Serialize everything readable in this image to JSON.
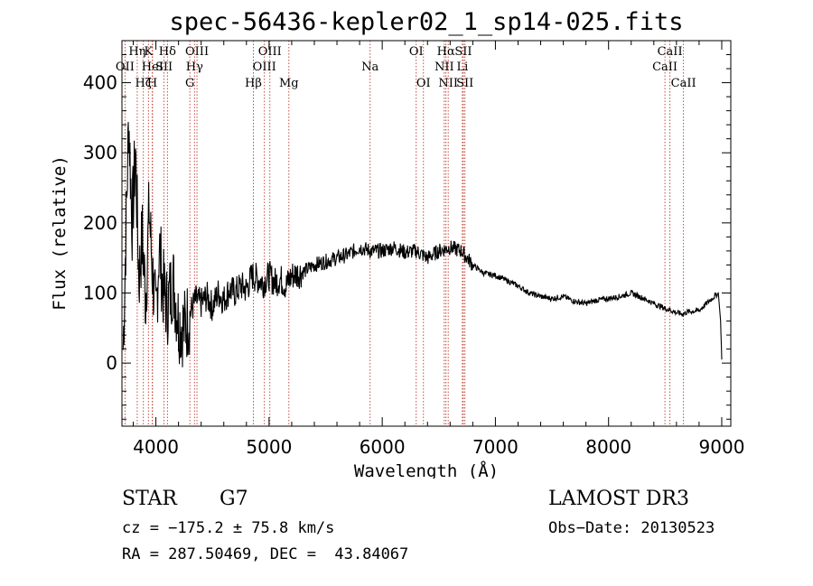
{
  "chart_data": {
    "type": "line",
    "title": "spec-56436-kepler02_1_sp14-025.fits",
    "xlabel": "Wavelength (Å)",
    "ylabel": "Flux (relative)",
    "xlim": [
      3700,
      9080
    ],
    "ylim": [
      -90,
      460
    ],
    "xticks": [
      4000,
      5000,
      6000,
      7000,
      8000,
      9000
    ],
    "yticks": [
      0,
      100,
      200,
      300,
      400
    ],
    "grid": false,
    "series": [
      {
        "name": "spectrum",
        "color": "#000000",
        "x": [
          3710,
          3730,
          3760,
          3790,
          3820,
          3850,
          3880,
          3910,
          3940,
          3970,
          4000,
          4030,
          4060,
          4100,
          4150,
          4200,
          4250,
          4300,
          4350,
          4400,
          4450,
          4500,
          4550,
          4600,
          4650,
          4700,
          4750,
          4800,
          4850,
          4900,
          4950,
          5000,
          5050,
          5100,
          5150,
          5200,
          5300,
          5400,
          5500,
          5600,
          5700,
          5800,
          5900,
          6000,
          6100,
          6200,
          6300,
          6400,
          6500,
          6600,
          6700,
          6800,
          6900,
          7000,
          7100,
          7200,
          7300,
          7400,
          7500,
          7600,
          7700,
          7800,
          7900,
          8000,
          8100,
          8200,
          8300,
          8400,
          8500,
          8600,
          8650,
          8700,
          8800,
          8900,
          8970,
          8990,
          9000
        ],
        "y": [
          20,
          150,
          350,
          200,
          300,
          120,
          180,
          90,
          220,
          130,
          60,
          170,
          110,
          80,
          120,
          60,
          50,
          70,
          90,
          85,
          95,
          80,
          100,
          90,
          105,
          100,
          110,
          105,
          125,
          120,
          115,
          125,
          115,
          120,
          110,
          125,
          130,
          140,
          145,
          150,
          155,
          165,
          160,
          160,
          165,
          158,
          160,
          150,
          160,
          165,
          160,
          140,
          128,
          125,
          118,
          110,
          100,
          95,
          92,
          95,
          88,
          85,
          90,
          92,
          95,
          100,
          93,
          85,
          78,
          72,
          70,
          73,
          75,
          90,
          100,
          60,
          5
        ]
      }
    ],
    "spectral_lines": [
      {
        "name": "Hη",
        "x": 3835,
        "row": 1
      },
      {
        "name": "OII",
        "x": 3727,
        "row": 2
      },
      {
        "name": "Hζ",
        "x": 3889,
        "row": 3
      },
      {
        "name": "K",
        "x": 3934,
        "row": 1
      },
      {
        "name": "HeI",
        "x": 3970,
        "row": 2
      },
      {
        "name": "H",
        "x": 3968,
        "row": 3
      },
      {
        "name": "SII",
        "x": 4072,
        "row": 2
      },
      {
        "name": "Hδ",
        "x": 4102,
        "row": 1
      },
      {
        "name": "OIII",
        "x": 4363,
        "row": 1
      },
      {
        "name": "Hγ",
        "x": 4341,
        "row": 2
      },
      {
        "name": "G",
        "x": 4300,
        "row": 3
      },
      {
        "name": "Hβ",
        "x": 4861,
        "row": 3
      },
      {
        "name": "OIII",
        "x": 4959,
        "row": 2
      },
      {
        "name": "OIII",
        "x": 5007,
        "row": 1
      },
      {
        "name": "Mg",
        "x": 5175,
        "row": 3
      },
      {
        "name": "Na",
        "x": 5893,
        "row": 2
      },
      {
        "name": "OI",
        "x": 6300,
        "row": 1
      },
      {
        "name": "OI",
        "x": 6364,
        "row": 3
      },
      {
        "name": "Hα",
        "x": 6563,
        "row": 1
      },
      {
        "name": "NII",
        "x": 6548,
        "row": 2
      },
      {
        "name": "NII",
        "x": 6583,
        "row": 3
      },
      {
        "name": "SII",
        "x": 6717,
        "row": 1
      },
      {
        "name": "Li",
        "x": 6708,
        "row": 2
      },
      {
        "name": "SII",
        "x": 6731,
        "row": 3
      },
      {
        "name": "CaII",
        "x": 8542,
        "row": 1
      },
      {
        "name": "CaII",
        "x": 8498,
        "row": 2
      },
      {
        "name": "CaII",
        "x": 8662,
        "row": 3
      }
    ],
    "line_color": "#c0392b"
  },
  "info": {
    "object_type": "STAR",
    "subclass": "G7",
    "redshift": "cz = −175.2 ± 75.8 km/s",
    "coords": "RA = 287.50469, DEC =  43.84067",
    "survey": "LAMOST DR3",
    "obs_date": "Obs−Date: 20130523"
  }
}
